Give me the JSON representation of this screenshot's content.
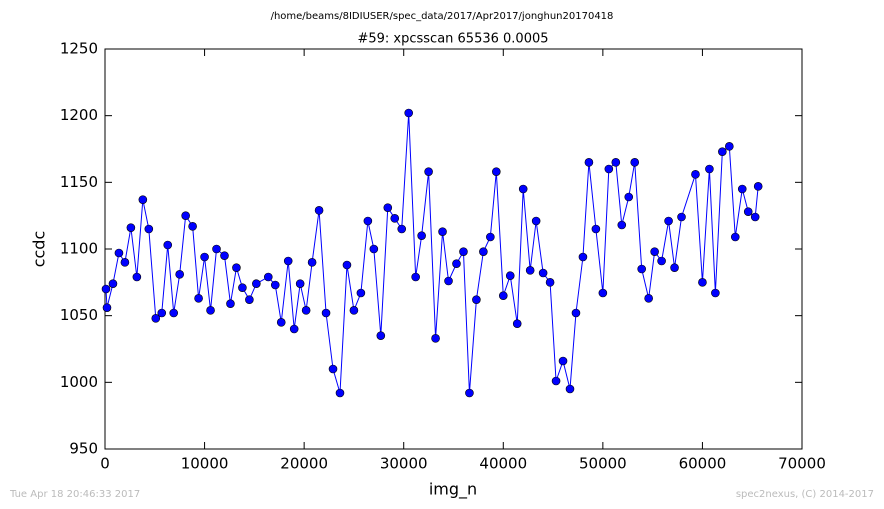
{
  "chart_data": {
    "type": "line",
    "suptitle": "/home/beams/8IDIUSER/spec_data/2017/Apr2017/jonghun20170418",
    "title": "#59: xpcsscan 65536 0.0005",
    "x_label": "img_n",
    "y_label": "ccdc",
    "footer_left": "Tue Apr 18 20:46:33 2017",
    "footer_right": "spec2nexus, (C) 2014-2017",
    "xlim": [
      0,
      70000
    ],
    "xticks": [
      0,
      10000,
      20000,
      30000,
      40000,
      50000,
      60000,
      70000
    ],
    "ylim": [
      950,
      1250
    ],
    "yticks": [
      950,
      1000,
      1050,
      1100,
      1150,
      1200,
      1250
    ],
    "grid": false,
    "x": [
      100,
      200,
      800,
      1400,
      2000,
      2600,
      3200,
      3800,
      4400,
      5100,
      5700,
      6300,
      6900,
      7500,
      8100,
      8800,
      9400,
      10000,
      10600,
      11200,
      12000,
      12600,
      13200,
      13800,
      14500,
      15200,
      16400,
      17100,
      17700,
      18400,
      19000,
      19600,
      20200,
      20800,
      21500,
      22200,
      22900,
      23600,
      24300,
      25000,
      25700,
      26400,
      27000,
      27700,
      28400,
      29100,
      29800,
      30500,
      31200,
      31800,
      32500,
      33200,
      33900,
      34500,
      35300,
      36000,
      36600,
      37300,
      38000,
      38700,
      39300,
      40000,
      40700,
      41400,
      42000,
      42700,
      43300,
      44000,
      44700,
      45300,
      46000,
      46700,
      47300,
      48000,
      48600,
      49300,
      50000,
      50600,
      51300,
      51900,
      52600,
      53200,
      53900,
      54600,
      55200,
      55900,
      56600,
      57200,
      57900,
      59300,
      60000,
      60700,
      61300,
      62000,
      62700,
      63300,
      64000,
      64600,
      65300,
      65600
    ],
    "series": [
      {
        "color": "#0000ff",
        "values": [
          1070,
          1056,
          1074,
          1097,
          1090,
          1116,
          1079,
          1137,
          1115,
          1048,
          1052,
          1103,
          1052,
          1081,
          1125,
          1117,
          1063,
          1094,
          1054,
          1100,
          1095,
          1059,
          1086,
          1071,
          1062,
          1074,
          1079,
          1073,
          1045,
          1091,
          1040,
          1074,
          1054,
          1090,
          1129,
          1052,
          1010,
          992,
          1088,
          1054,
          1067,
          1121,
          1100,
          1035,
          1131,
          1123,
          1115,
          1202,
          1079,
          1110,
          1158,
          1033,
          1113,
          1076,
          1089,
          1098,
          992,
          1062,
          1098,
          1109,
          1158,
          1065,
          1080,
          1044,
          1145,
          1084,
          1121,
          1082,
          1075,
          1001,
          1016,
          995,
          1052,
          1094,
          1165,
          1115,
          1067,
          1160,
          1165,
          1118,
          1139,
          1165,
          1085,
          1063,
          1098,
          1091,
          1121,
          1086,
          1124,
          1156,
          1075,
          1160,
          1067,
          1173,
          1177,
          1109,
          1145,
          1128,
          1124,
          1147
        ]
      }
    ]
  }
}
